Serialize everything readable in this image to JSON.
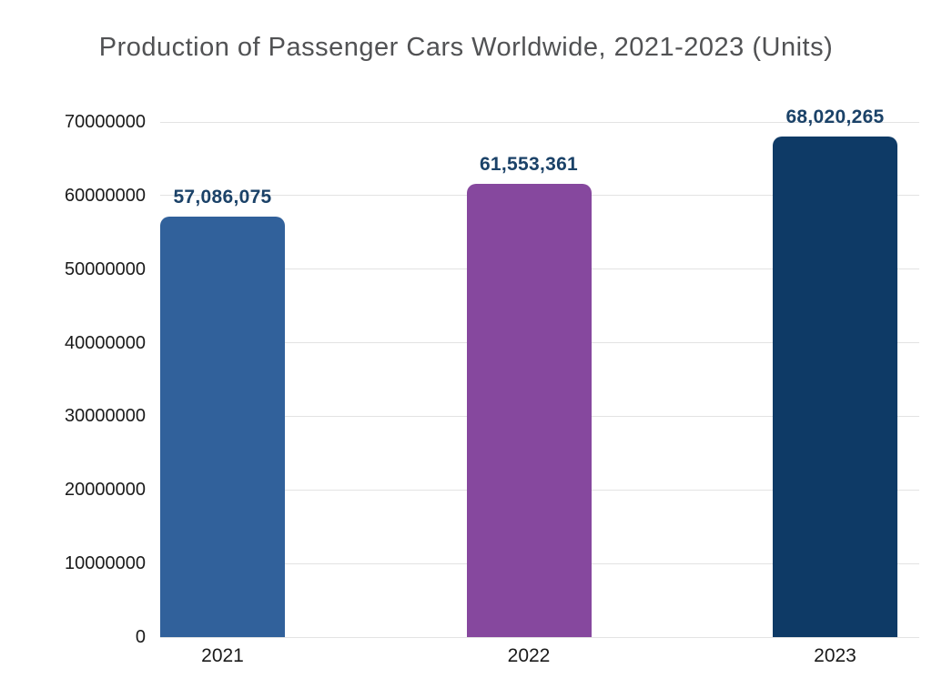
{
  "chart_data": {
    "type": "bar",
    "title": "Production of Passenger Cars Worldwide, 2021-2023 (Units)",
    "categories": [
      "2021",
      "2022",
      "2023"
    ],
    "values": [
      57086075,
      61553361,
      68020265
    ],
    "value_labels": [
      "57,086,075",
      "61,553,361",
      "68,020,265"
    ],
    "bar_colors": [
      "#31619B",
      "#86489E",
      "#0E3A66"
    ],
    "xlabel": "",
    "ylabel": "",
    "ylim": [
      0,
      70000000
    ],
    "ytick_interval": 10000000,
    "ytick_labels": [
      "0",
      "10000000",
      "20000000",
      "30000000",
      "40000000",
      "50000000",
      "60000000",
      "70000000"
    ],
    "grid": true,
    "legend": false,
    "value_label_color": "#1B4268",
    "gridline_color": "#e3e3e3",
    "axis_text_color": "#1a1a1a",
    "title_color": "#515254"
  }
}
